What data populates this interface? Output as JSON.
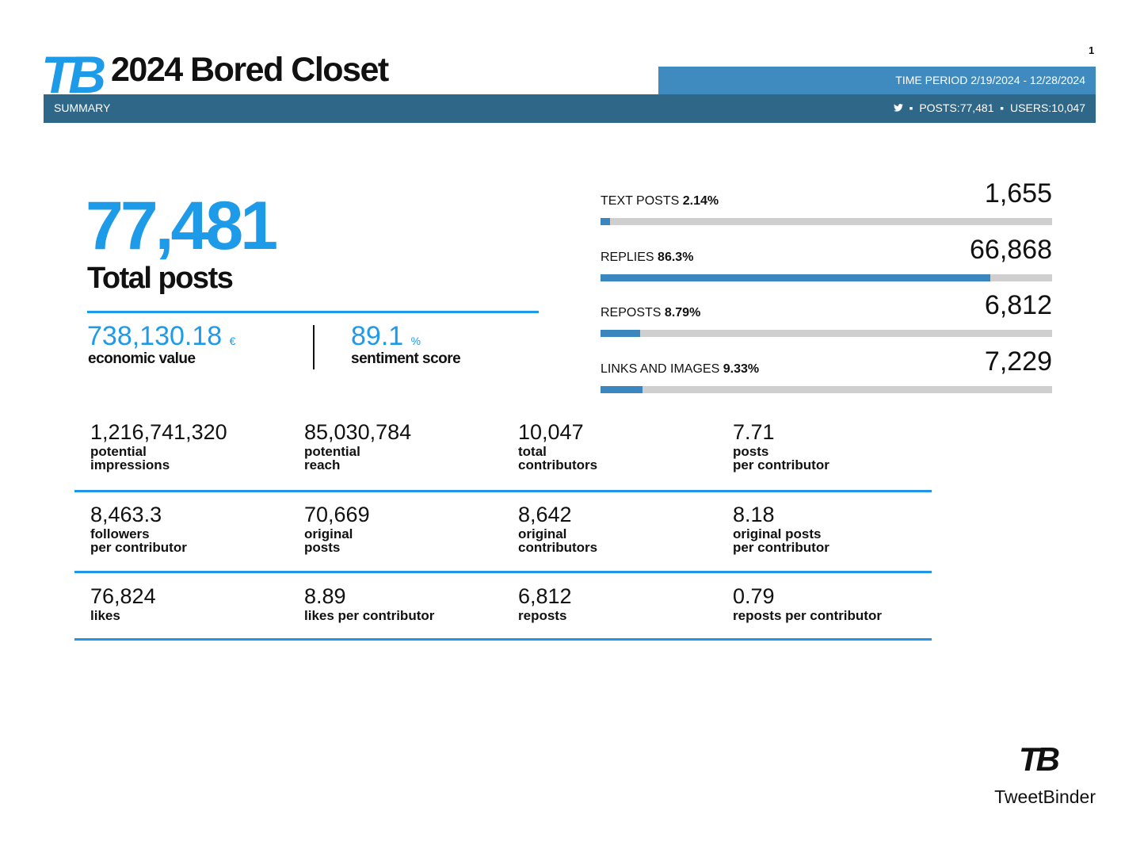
{
  "page_number": "1",
  "header": {
    "logo": "TB",
    "title": "2024 Bored Closet",
    "section": "SUMMARY",
    "time_period_label": "TIME PERIOD",
    "time_period": "2/19/2024 - 12/28/2024",
    "posts_label": "POSTS:",
    "posts": "77,481",
    "users_label": "USERS:",
    "users": "10,047"
  },
  "total": {
    "value": "77,481",
    "label": "Total posts"
  },
  "economic": {
    "value": "738,130.18",
    "unit": "€",
    "label": "economic value"
  },
  "sentiment": {
    "value": "89.1",
    "unit": "%",
    "label": "sentiment score"
  },
  "breakdown": [
    {
      "label": "TEXT POSTS",
      "share": 2.14,
      "share_label": "2.14%",
      "count": "1,655"
    },
    {
      "label": "REPLIES",
      "share": 86.3,
      "share_label": "86.3%",
      "count": "66,868"
    },
    {
      "label": "REPOSTS",
      "share": 8.79,
      "share_label": "8.79%",
      "count": "6,812"
    },
    {
      "label": "LINKS AND IMAGES",
      "share": 9.33,
      "share_label": "9.33%",
      "count": "7,229"
    }
  ],
  "metrics": [
    [
      {
        "value": "1,216,741,320",
        "label": [
          "potential",
          "impressions"
        ]
      },
      {
        "value": "85,030,784",
        "label": [
          "potential",
          "reach"
        ]
      },
      {
        "value": "10,047",
        "label": [
          "total",
          "contributors"
        ]
      },
      {
        "value": "7.71",
        "label": [
          "posts",
          "per contributor"
        ]
      }
    ],
    [
      {
        "value": "8,463.3",
        "label": [
          "followers",
          "per contributor"
        ]
      },
      {
        "value": "70,669",
        "label": [
          "original",
          "posts"
        ]
      },
      {
        "value": "8,642",
        "label": [
          "original",
          "contributors"
        ]
      },
      {
        "value": "8.18",
        "label": [
          "original posts",
          "per contributor"
        ]
      }
    ],
    [
      {
        "value": "76,824",
        "label": [
          "likes"
        ]
      },
      {
        "value": "8.89",
        "label": [
          "likes per contributor"
        ]
      },
      {
        "value": "6,812",
        "label": [
          "reposts"
        ]
      },
      {
        "value": "0.79",
        "label": [
          "reposts per contributor"
        ]
      }
    ]
  ],
  "footer": {
    "logo": "TB",
    "brand": "TweetBinder"
  }
}
